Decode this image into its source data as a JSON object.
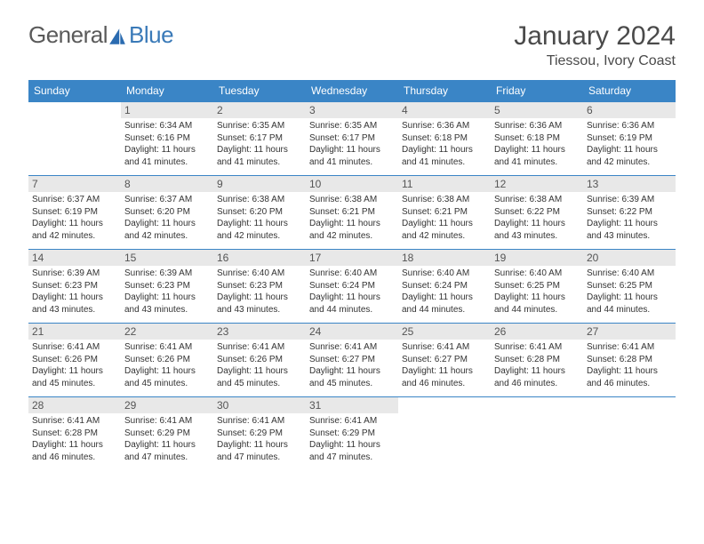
{
  "logo": {
    "text1": "General",
    "text2": "Blue"
  },
  "title": "January 2024",
  "location": "Tiessou, Ivory Coast",
  "colors": {
    "header_bg": "#3a85c6",
    "daynum_bg": "#e8e8e8",
    "text": "#333333",
    "title_color": "#4a4a4a"
  },
  "dayNames": [
    "Sunday",
    "Monday",
    "Tuesday",
    "Wednesday",
    "Thursday",
    "Friday",
    "Saturday"
  ],
  "weeks": [
    [
      {
        "n": "",
        "l1": "",
        "l2": "",
        "l3": "",
        "l4": ""
      },
      {
        "n": "1",
        "l1": "Sunrise: 6:34 AM",
        "l2": "Sunset: 6:16 PM",
        "l3": "Daylight: 11 hours",
        "l4": "and 41 minutes."
      },
      {
        "n": "2",
        "l1": "Sunrise: 6:35 AM",
        "l2": "Sunset: 6:17 PM",
        "l3": "Daylight: 11 hours",
        "l4": "and 41 minutes."
      },
      {
        "n": "3",
        "l1": "Sunrise: 6:35 AM",
        "l2": "Sunset: 6:17 PM",
        "l3": "Daylight: 11 hours",
        "l4": "and 41 minutes."
      },
      {
        "n": "4",
        "l1": "Sunrise: 6:36 AM",
        "l2": "Sunset: 6:18 PM",
        "l3": "Daylight: 11 hours",
        "l4": "and 41 minutes."
      },
      {
        "n": "5",
        "l1": "Sunrise: 6:36 AM",
        "l2": "Sunset: 6:18 PM",
        "l3": "Daylight: 11 hours",
        "l4": "and 41 minutes."
      },
      {
        "n": "6",
        "l1": "Sunrise: 6:36 AM",
        "l2": "Sunset: 6:19 PM",
        "l3": "Daylight: 11 hours",
        "l4": "and 42 minutes."
      }
    ],
    [
      {
        "n": "7",
        "l1": "Sunrise: 6:37 AM",
        "l2": "Sunset: 6:19 PM",
        "l3": "Daylight: 11 hours",
        "l4": "and 42 minutes."
      },
      {
        "n": "8",
        "l1": "Sunrise: 6:37 AM",
        "l2": "Sunset: 6:20 PM",
        "l3": "Daylight: 11 hours",
        "l4": "and 42 minutes."
      },
      {
        "n": "9",
        "l1": "Sunrise: 6:38 AM",
        "l2": "Sunset: 6:20 PM",
        "l3": "Daylight: 11 hours",
        "l4": "and 42 minutes."
      },
      {
        "n": "10",
        "l1": "Sunrise: 6:38 AM",
        "l2": "Sunset: 6:21 PM",
        "l3": "Daylight: 11 hours",
        "l4": "and 42 minutes."
      },
      {
        "n": "11",
        "l1": "Sunrise: 6:38 AM",
        "l2": "Sunset: 6:21 PM",
        "l3": "Daylight: 11 hours",
        "l4": "and 42 minutes."
      },
      {
        "n": "12",
        "l1": "Sunrise: 6:38 AM",
        "l2": "Sunset: 6:22 PM",
        "l3": "Daylight: 11 hours",
        "l4": "and 43 minutes."
      },
      {
        "n": "13",
        "l1": "Sunrise: 6:39 AM",
        "l2": "Sunset: 6:22 PM",
        "l3": "Daylight: 11 hours",
        "l4": "and 43 minutes."
      }
    ],
    [
      {
        "n": "14",
        "l1": "Sunrise: 6:39 AM",
        "l2": "Sunset: 6:23 PM",
        "l3": "Daylight: 11 hours",
        "l4": "and 43 minutes."
      },
      {
        "n": "15",
        "l1": "Sunrise: 6:39 AM",
        "l2": "Sunset: 6:23 PM",
        "l3": "Daylight: 11 hours",
        "l4": "and 43 minutes."
      },
      {
        "n": "16",
        "l1": "Sunrise: 6:40 AM",
        "l2": "Sunset: 6:23 PM",
        "l3": "Daylight: 11 hours",
        "l4": "and 43 minutes."
      },
      {
        "n": "17",
        "l1": "Sunrise: 6:40 AM",
        "l2": "Sunset: 6:24 PM",
        "l3": "Daylight: 11 hours",
        "l4": "and 44 minutes."
      },
      {
        "n": "18",
        "l1": "Sunrise: 6:40 AM",
        "l2": "Sunset: 6:24 PM",
        "l3": "Daylight: 11 hours",
        "l4": "and 44 minutes."
      },
      {
        "n": "19",
        "l1": "Sunrise: 6:40 AM",
        "l2": "Sunset: 6:25 PM",
        "l3": "Daylight: 11 hours",
        "l4": "and 44 minutes."
      },
      {
        "n": "20",
        "l1": "Sunrise: 6:40 AM",
        "l2": "Sunset: 6:25 PM",
        "l3": "Daylight: 11 hours",
        "l4": "and 44 minutes."
      }
    ],
    [
      {
        "n": "21",
        "l1": "Sunrise: 6:41 AM",
        "l2": "Sunset: 6:26 PM",
        "l3": "Daylight: 11 hours",
        "l4": "and 45 minutes."
      },
      {
        "n": "22",
        "l1": "Sunrise: 6:41 AM",
        "l2": "Sunset: 6:26 PM",
        "l3": "Daylight: 11 hours",
        "l4": "and 45 minutes."
      },
      {
        "n": "23",
        "l1": "Sunrise: 6:41 AM",
        "l2": "Sunset: 6:26 PM",
        "l3": "Daylight: 11 hours",
        "l4": "and 45 minutes."
      },
      {
        "n": "24",
        "l1": "Sunrise: 6:41 AM",
        "l2": "Sunset: 6:27 PM",
        "l3": "Daylight: 11 hours",
        "l4": "and 45 minutes."
      },
      {
        "n": "25",
        "l1": "Sunrise: 6:41 AM",
        "l2": "Sunset: 6:27 PM",
        "l3": "Daylight: 11 hours",
        "l4": "and 46 minutes."
      },
      {
        "n": "26",
        "l1": "Sunrise: 6:41 AM",
        "l2": "Sunset: 6:28 PM",
        "l3": "Daylight: 11 hours",
        "l4": "and 46 minutes."
      },
      {
        "n": "27",
        "l1": "Sunrise: 6:41 AM",
        "l2": "Sunset: 6:28 PM",
        "l3": "Daylight: 11 hours",
        "l4": "and 46 minutes."
      }
    ],
    [
      {
        "n": "28",
        "l1": "Sunrise: 6:41 AM",
        "l2": "Sunset: 6:28 PM",
        "l3": "Daylight: 11 hours",
        "l4": "and 46 minutes."
      },
      {
        "n": "29",
        "l1": "Sunrise: 6:41 AM",
        "l2": "Sunset: 6:29 PM",
        "l3": "Daylight: 11 hours",
        "l4": "and 47 minutes."
      },
      {
        "n": "30",
        "l1": "Sunrise: 6:41 AM",
        "l2": "Sunset: 6:29 PM",
        "l3": "Daylight: 11 hours",
        "l4": "and 47 minutes."
      },
      {
        "n": "31",
        "l1": "Sunrise: 6:41 AM",
        "l2": "Sunset: 6:29 PM",
        "l3": "Daylight: 11 hours",
        "l4": "and 47 minutes."
      },
      {
        "n": "",
        "l1": "",
        "l2": "",
        "l3": "",
        "l4": ""
      },
      {
        "n": "",
        "l1": "",
        "l2": "",
        "l3": "",
        "l4": ""
      },
      {
        "n": "",
        "l1": "",
        "l2": "",
        "l3": "",
        "l4": ""
      }
    ]
  ]
}
